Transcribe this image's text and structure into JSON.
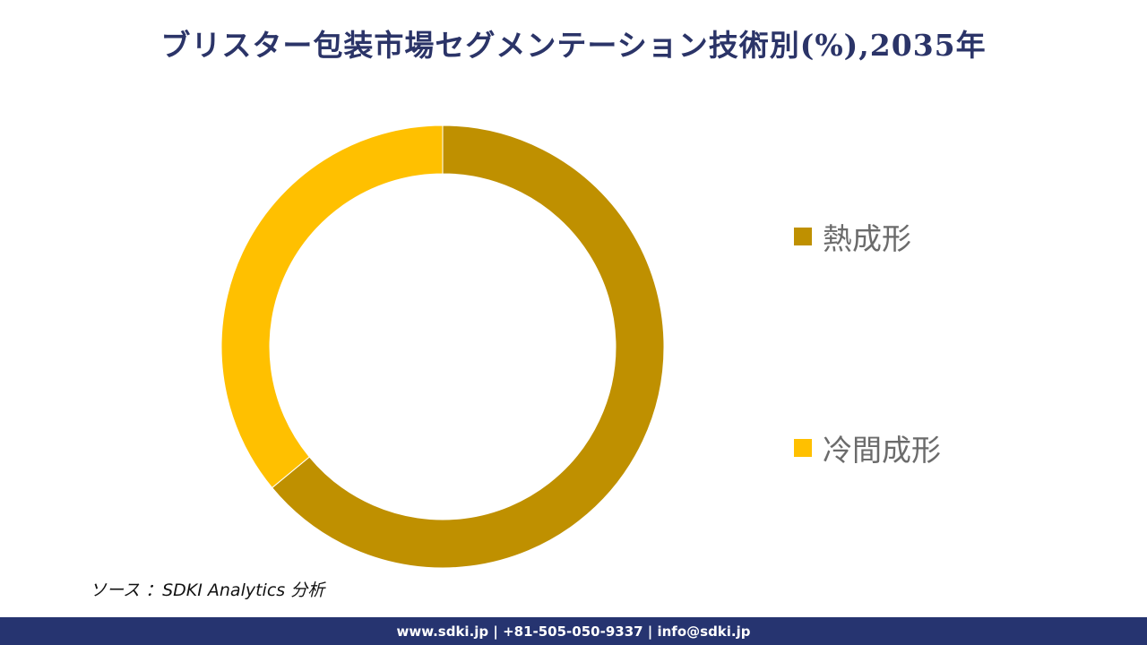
{
  "title": "ブリスター包装市場セグメンテーション技術別(%),2035年",
  "chart_data": {
    "type": "pie",
    "variant": "donut",
    "title": "ブリスター包装市場セグメンテーション技術別(%),2035年",
    "categories": [
      "熱成形",
      "冷間成形"
    ],
    "values": [
      64,
      36
    ],
    "colors": [
      "#bf9000",
      "#ffc000"
    ],
    "start_angle_deg": 0,
    "direction": "clockwise",
    "legend_position": "right",
    "data_labels": false
  },
  "legend": {
    "items": [
      {
        "label": "熱成形",
        "color": "#bf9000"
      },
      {
        "label": "冷間成形",
        "color": "#ffc000"
      }
    ]
  },
  "source": "ソース ：SDKI Analytics  分析",
  "footer": "www.sdki.jp | +81-505-050-9337 | info@sdki.jp"
}
